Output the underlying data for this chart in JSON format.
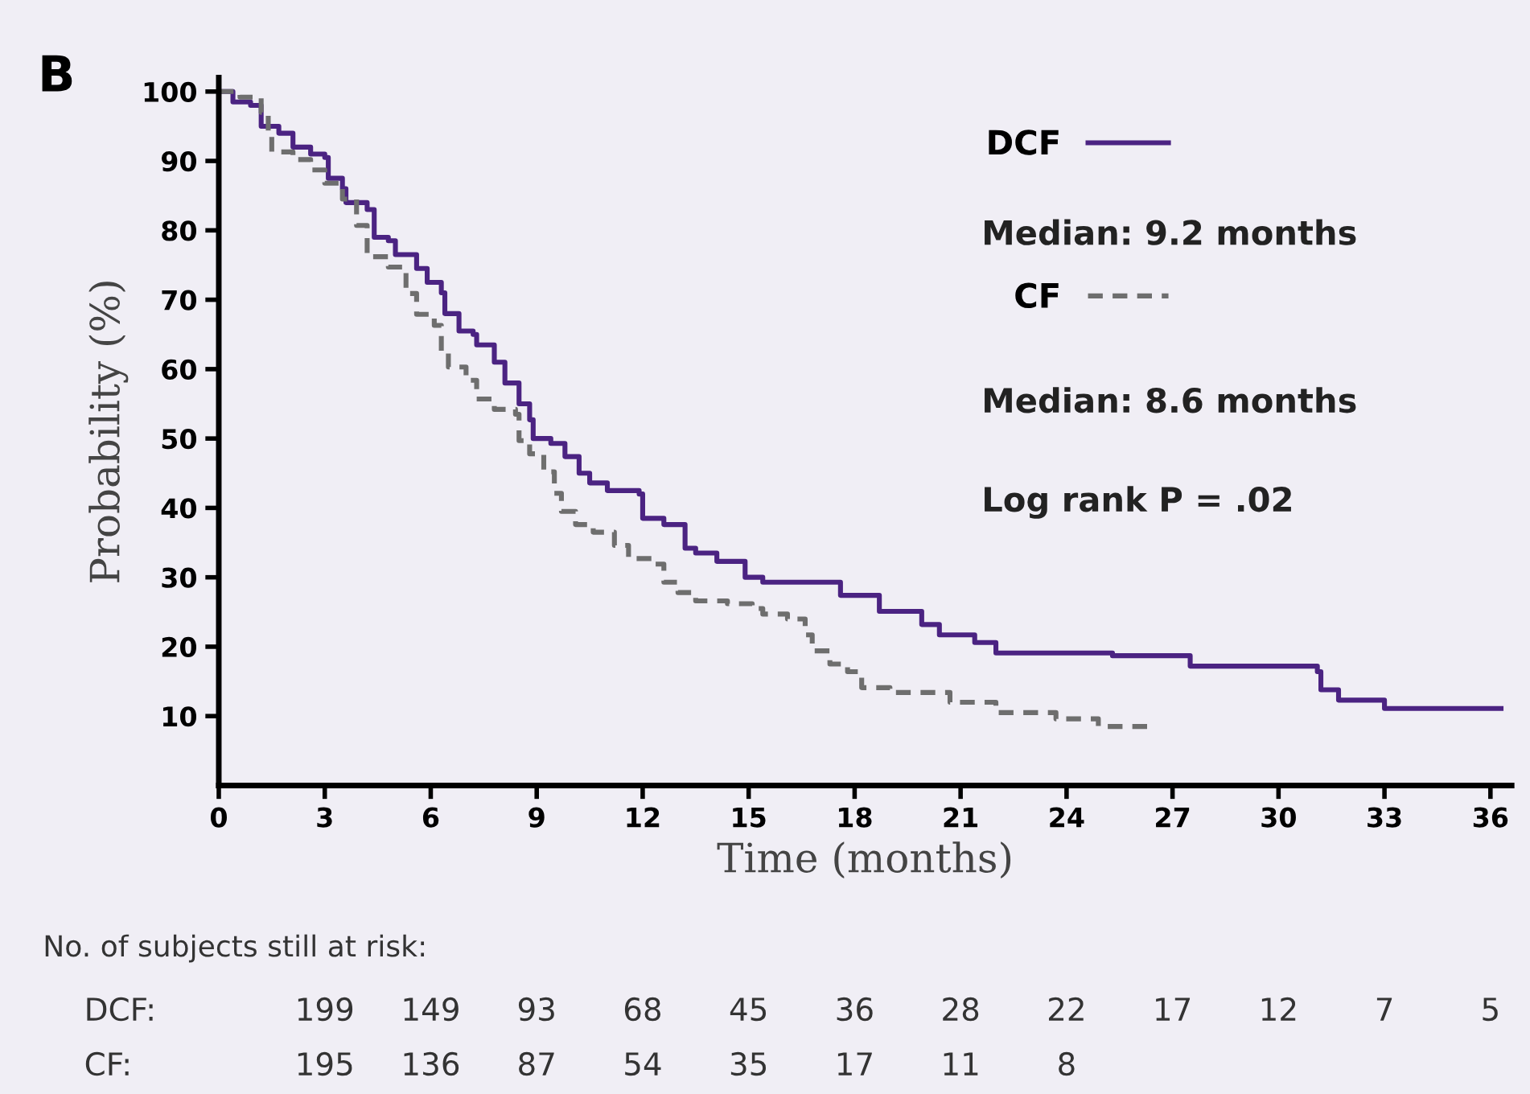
{
  "chart_data": {
    "type": "step",
    "xlabel": "Time (months)",
    "ylabel": "Probability (%)",
    "xlim": [
      0,
      36.6
    ],
    "xticks": [
      0,
      3,
      6,
      9,
      12,
      15,
      18,
      21,
      24,
      27,
      30,
      33,
      36
    ],
    "ylim": [
      0,
      102
    ],
    "yticks": [
      10,
      20,
      30,
      40,
      50,
      60,
      70,
      80,
      90,
      100
    ],
    "grid": false,
    "legend": "top right",
    "series": [
      {
        "name": "DCF",
        "color": "#4b2382",
        "line_style": "solid",
        "x": [
          0,
          0.3,
          0.4,
          0.9,
          1.2,
          1.7,
          2.1,
          2.6,
          3.0,
          3.1,
          3.5,
          3.6,
          4.2,
          4.4,
          4.8,
          5.0,
          5.6,
          5.9,
          6.3,
          6.4,
          6.8,
          7.2,
          7.3,
          7.8,
          8.1,
          8.5,
          8.8,
          8.9,
          9.4,
          9.8,
          10.2,
          10.5,
          11.0,
          11.9,
          12.0,
          12.6,
          13.2,
          13.5,
          14.1,
          14.9,
          15.4,
          17.2,
          17.6,
          18.7,
          19.9,
          20.4,
          21.4,
          22.0,
          25.3,
          27.5,
          31.1,
          31.2,
          31.7,
          33.0,
          36.3
        ],
        "values": [
          100,
          100,
          98.5,
          98,
          95,
          94,
          92,
          91,
          90.5,
          87.5,
          86,
          84,
          83,
          79,
          78.5,
          76.5,
          74.5,
          72.5,
          71,
          68,
          65.5,
          65,
          63.5,
          61,
          58,
          55,
          52.7,
          50,
          49.3,
          47.4,
          45,
          43.6,
          42.5,
          42,
          38.5,
          37.6,
          34.2,
          33.5,
          32.3,
          30,
          29.3,
          29.3,
          27.4,
          25.1,
          23.2,
          21.7,
          20.6,
          19.1,
          18.7,
          17.2,
          16.4,
          13.8,
          12.3,
          11.1,
          11.1
        ]
      },
      {
        "name": "CF",
        "color": "#6e6e6e",
        "line_style": "dashed",
        "x": [
          0,
          0.6,
          1.2,
          1.4,
          1.5,
          2.1,
          2.6,
          3.0,
          3.5,
          3.9,
          4.2,
          4.8,
          5.3,
          5.6,
          6.1,
          6.3,
          6.5,
          7.0,
          7.3,
          7.8,
          8.4,
          8.5,
          8.8,
          9.2,
          9.5,
          9.7,
          10.1,
          10.6,
          11.2,
          11.6,
          12.3,
          12.6,
          13.0,
          13.5,
          14.4,
          15.1,
          15.4,
          16.1,
          16.6,
          16.8,
          17.3,
          17.8,
          18.2,
          19.0,
          20.7,
          22.0,
          23.7,
          24.9,
          26.3
        ],
        "values": [
          100,
          99.2,
          97,
          93.6,
          91.3,
          90.2,
          88.7,
          86.8,
          84.5,
          80.7,
          76.2,
          74.7,
          70.9,
          67.9,
          66.3,
          62.6,
          60.3,
          58.4,
          55.7,
          54.2,
          53.5,
          49.7,
          47.8,
          45.2,
          42.1,
          39.5,
          37.6,
          36.5,
          34.6,
          32.7,
          31.9,
          29.3,
          27.8,
          26.6,
          26.2,
          25.5,
          24.7,
          24.0,
          21.7,
          19.4,
          17.5,
          16.4,
          14.1,
          13.4,
          12.0,
          10.5,
          9.6,
          8.5,
          8.5
        ]
      }
    ],
    "annotations": [
      "B",
      "Median: 9.2 months",
      "Median: 8.6 months",
      "Log rank P = .02",
      "No. of subjects still at risk:",
      "DCF: 199 149 93 68 45 36 28 22 17 12 7 5",
      "CF: 195 136 87 54 35 17 11 8"
    ]
  }
}
